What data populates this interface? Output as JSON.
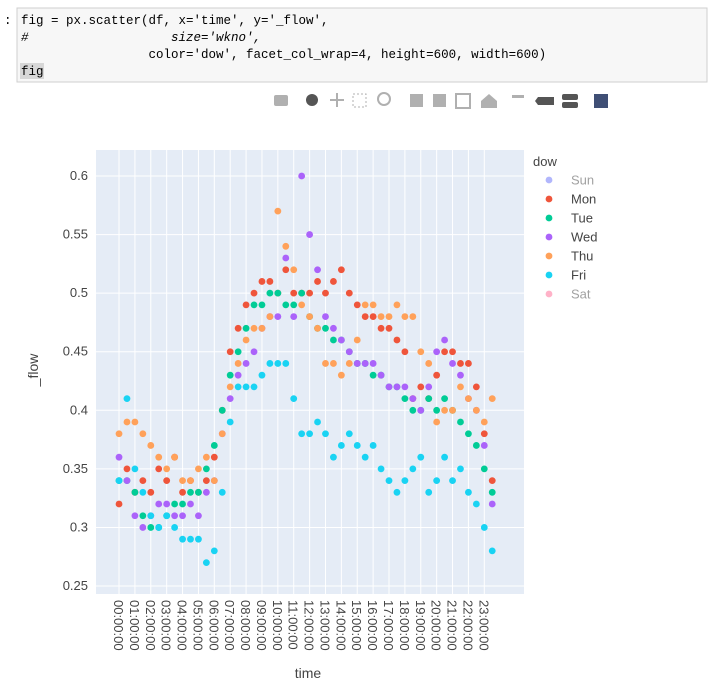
{
  "notebook": {
    "prompt": ":",
    "code_lines": [
      "fig = px.scatter(df, x='time', y='_flow',",
      "#                   size='wkno',",
      "                 color='dow', facet_col_wrap=4, height=600, width=600)",
      "fig"
    ]
  },
  "chart_data": {
    "type": "scatter",
    "x_label": "time",
    "y_label": "_flow",
    "legend_title": "dow",
    "grid": true,
    "x": [
      0,
      0.5,
      1,
      1.5,
      2,
      2.5,
      3,
      3.5,
      4,
      4.5,
      5,
      5.5,
      6,
      6.5,
      7,
      7.5,
      8,
      8.5,
      9,
      9.5,
      10,
      10.5,
      11,
      11.5,
      12,
      12.5,
      13,
      13.5,
      14,
      14.5,
      15,
      15.5,
      16,
      16.5,
      17,
      17.5,
      18,
      18.5,
      19,
      19.5,
      20,
      20.5,
      21,
      21.5,
      22,
      22.5,
      23,
      23.5
    ],
    "xlim": [
      -1.45,
      25.5
    ],
    "ylim": [
      0.2432,
      0.6222
    ],
    "xticks": [
      {
        "value": 0,
        "label": "00:00:00"
      },
      {
        "value": 1,
        "label": "01:00:00"
      },
      {
        "value": 2,
        "label": "02:00:00"
      },
      {
        "value": 3,
        "label": "03:00:00"
      },
      {
        "value": 4,
        "label": "04:00:00"
      },
      {
        "value": 5,
        "label": "05:00:00"
      },
      {
        "value": 6,
        "label": "06:00:00"
      },
      {
        "value": 7,
        "label": "07:00:00"
      },
      {
        "value": 8,
        "label": "08:00:00"
      },
      {
        "value": 9,
        "label": "09:00:00"
      },
      {
        "value": 10,
        "label": "10:00:00"
      },
      {
        "value": 11,
        "label": "11:00:00"
      },
      {
        "value": 12,
        "label": "12:00:00"
      },
      {
        "value": 13,
        "label": "13:00:00"
      },
      {
        "value": 14,
        "label": "14:00:00"
      },
      {
        "value": 15,
        "label": "15:00:00"
      },
      {
        "value": 16,
        "label": "16:00:00"
      },
      {
        "value": 17,
        "label": "17:00:00"
      },
      {
        "value": 18,
        "label": "18:00:00"
      },
      {
        "value": 19,
        "label": "19:00:00"
      },
      {
        "value": 20,
        "label": "20:00:00"
      },
      {
        "value": 21,
        "label": "21:00:00"
      },
      {
        "value": 22,
        "label": "22:00:00"
      },
      {
        "value": 23,
        "label": "23:00:00"
      }
    ],
    "yticks": [
      0.25,
      0.3,
      0.35,
      0.4,
      0.45,
      0.5,
      0.55,
      0.6
    ],
    "series": [
      {
        "name": "Sun",
        "color": "#636efa",
        "visible": false
      },
      {
        "name": "Mon",
        "color": "#EF553B",
        "visible": true,
        "values": [
          0.32,
          0.35,
          0.33,
          0.34,
          0.33,
          0.35,
          0.34,
          0.36,
          0.33,
          0.34,
          0.33,
          0.34,
          0.36,
          0.4,
          0.45,
          0.47,
          0.49,
          0.5,
          0.51,
          0.51,
          0.5,
          0.52,
          0.5,
          0.5,
          0.5,
          0.51,
          0.5,
          0.51,
          0.52,
          0.5,
          0.49,
          0.48,
          0.48,
          0.47,
          0.47,
          0.46,
          0.45,
          0.41,
          0.42,
          0.41,
          0.43,
          0.45,
          0.45,
          0.44,
          0.44,
          0.42,
          0.38,
          0.34
        ]
      },
      {
        "name": "Tue",
        "color": "#00cc96",
        "visible": true,
        "values": [
          0.34,
          0.34,
          0.33,
          0.31,
          0.3,
          0.3,
          0.31,
          0.32,
          0.32,
          0.33,
          0.33,
          0.35,
          0.37,
          0.4,
          0.43,
          0.45,
          0.47,
          0.49,
          0.49,
          0.5,
          0.5,
          0.49,
          0.49,
          0.5,
          0.48,
          0.47,
          0.47,
          0.46,
          0.46,
          0.45,
          0.44,
          0.44,
          0.43,
          0.43,
          0.42,
          0.42,
          0.41,
          0.4,
          0.4,
          0.41,
          0.4,
          0.41,
          0.4,
          0.39,
          0.38,
          0.37,
          0.35,
          0.33
        ]
      },
      {
        "name": "Wed",
        "color": "#ab63fa",
        "visible": true,
        "values": [
          0.36,
          0.34,
          0.31,
          0.3,
          0.31,
          0.32,
          0.32,
          0.31,
          0.31,
          0.32,
          0.31,
          0.33,
          0.34,
          0.38,
          0.41,
          0.43,
          0.44,
          0.45,
          0.47,
          0.48,
          0.48,
          0.53,
          0.48,
          0.6,
          0.55,
          0.52,
          0.48,
          0.47,
          0.46,
          0.45,
          0.44,
          0.44,
          0.44,
          0.43,
          0.42,
          0.42,
          0.42,
          0.41,
          0.4,
          0.42,
          0.45,
          0.46,
          0.44,
          0.43,
          0.41,
          0.4,
          0.37,
          0.32
        ]
      },
      {
        "name": "Thu",
        "color": "#FFA15A",
        "visible": true,
        "values": [
          0.38,
          0.39,
          0.39,
          0.38,
          0.37,
          0.36,
          0.35,
          0.36,
          0.34,
          0.34,
          0.35,
          0.36,
          0.34,
          0.38,
          0.42,
          0.44,
          0.46,
          0.47,
          0.47,
          0.48,
          0.57,
          0.54,
          0.52,
          0.49,
          0.48,
          0.47,
          0.44,
          0.44,
          0.43,
          0.44,
          0.46,
          0.49,
          0.49,
          0.48,
          0.48,
          0.49,
          0.48,
          0.48,
          0.45,
          0.44,
          0.39,
          0.4,
          0.4,
          0.42,
          0.41,
          0.4,
          0.39,
          0.41
        ]
      },
      {
        "name": "Fri",
        "color": "#19d3f3",
        "visible": true,
        "values": [
          0.34,
          0.41,
          0.35,
          0.33,
          0.31,
          0.3,
          0.31,
          0.3,
          0.29,
          0.29,
          0.29,
          0.27,
          0.28,
          0.33,
          0.39,
          0.42,
          0.42,
          0.42,
          0.43,
          0.44,
          0.44,
          0.44,
          0.41,
          0.38,
          0.38,
          0.39,
          0.38,
          0.36,
          0.37,
          0.38,
          0.37,
          0.36,
          0.37,
          0.35,
          0.34,
          0.33,
          0.34,
          0.35,
          0.36,
          0.33,
          0.34,
          0.36,
          0.34,
          0.35,
          0.33,
          0.32,
          0.3,
          0.28
        ]
      },
      {
        "name": "Sat",
        "color": "#FF6692",
        "visible": false
      }
    ]
  }
}
